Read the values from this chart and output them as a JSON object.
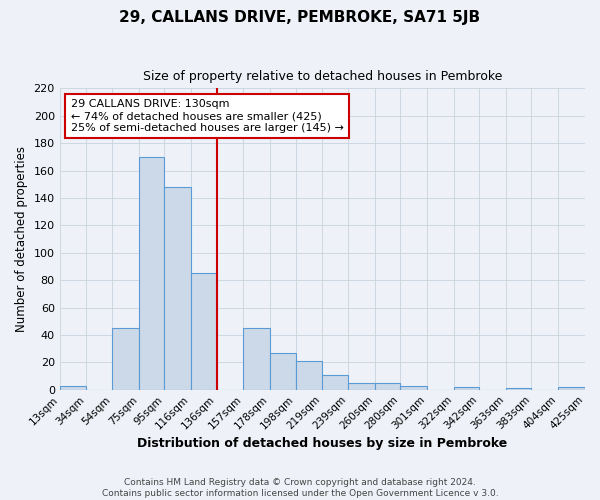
{
  "title": "29, CALLANS DRIVE, PEMBROKE, SA71 5JB",
  "subtitle": "Size of property relative to detached houses in Pembroke",
  "xlabel": "Distribution of detached houses by size in Pembroke",
  "ylabel": "Number of detached properties",
  "bin_labels": [
    "13sqm",
    "34sqm",
    "54sqm",
    "75sqm",
    "95sqm",
    "116sqm",
    "136sqm",
    "157sqm",
    "178sqm",
    "198sqm",
    "219sqm",
    "239sqm",
    "260sqm",
    "280sqm",
    "301sqm",
    "322sqm",
    "342sqm",
    "363sqm",
    "383sqm",
    "404sqm",
    "425sqm"
  ],
  "bar_heights": [
    3,
    0,
    45,
    170,
    148,
    85,
    0,
    45,
    27,
    21,
    11,
    5,
    5,
    3,
    0,
    2,
    0,
    1,
    0,
    2
  ],
  "bar_color": "#ccd9e8",
  "bar_edge_color": "#5b9bd5",
  "vline_x": 136,
  "vline_color": "#cc0000",
  "annotation_text": "29 CALLANS DRIVE: 130sqm\n← 74% of detached houses are smaller (425)\n25% of semi-detached houses are larger (145) →",
  "annotation_box_color": "#ffffff",
  "annotation_box_edge": "#cc0000",
  "ylim": [
    0,
    220
  ],
  "yticks": [
    0,
    20,
    40,
    60,
    80,
    100,
    120,
    140,
    160,
    180,
    200,
    220
  ],
  "grid_color": "#c8d4e0",
  "footer": "Contains HM Land Registry data © Crown copyright and database right 2024.\nContains public sector information licensed under the Open Government Licence v 3.0.",
  "bin_edges": [
    13,
    34,
    54,
    75,
    95,
    116,
    136,
    157,
    178,
    198,
    219,
    239,
    260,
    280,
    301,
    322,
    342,
    363,
    383,
    404,
    425
  ],
  "fig_bg": "#eef2f8",
  "plot_bg": "#eef2f8"
}
